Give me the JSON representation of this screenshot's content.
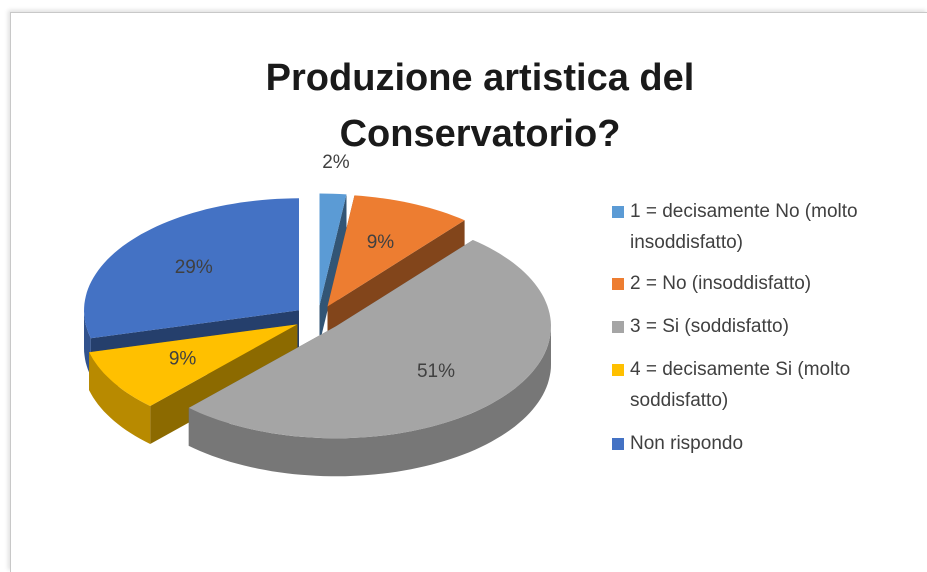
{
  "chart_data": {
    "type": "pie",
    "title": "Produzione artistica del Conservatorio?",
    "categories": [
      "1 = decisamente No (molto insoddisfatto)",
      "2 = No (insoddisfatto)",
      "3 = Si (soddisfatto)",
      "4 = decisamente Si (molto soddisfatto)",
      "Non rispondo"
    ],
    "values": [
      2,
      9,
      51,
      9,
      29
    ],
    "value_labels": [
      "2%",
      "9%",
      "51%",
      "9%",
      "29%"
    ],
    "colors": [
      "#5b9bd5",
      "#ed7d31",
      "#a5a5a5",
      "#ffc000",
      "#4472c4"
    ],
    "legend": "right"
  }
}
